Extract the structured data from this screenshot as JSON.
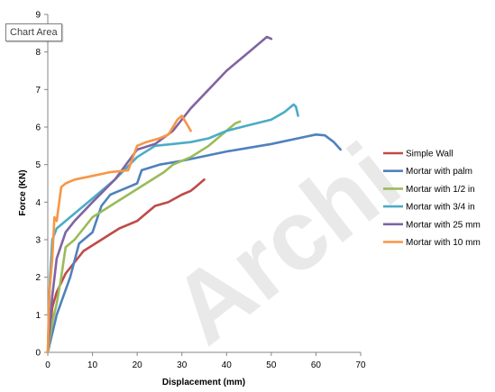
{
  "tooltip": {
    "label": "Chart Area"
  },
  "watermark": {
    "text": "Archi"
  },
  "chart_data": {
    "type": "line",
    "title": "",
    "xlabel": "Displacement  (mm)",
    "ylabel": "Force (KN)",
    "xlim": [
      0,
      70
    ],
    "ylim": [
      0,
      9
    ],
    "xticks": [
      0,
      10,
      20,
      30,
      40,
      50,
      60,
      70
    ],
    "yticks": [
      0,
      1,
      2,
      3,
      4,
      5,
      6,
      7,
      8,
      9
    ],
    "grid": false,
    "legend_position": "right",
    "series": [
      {
        "name": "Simple Wall",
        "color": "#be4b48",
        "points": [
          [
            0,
            0
          ],
          [
            1,
            1.2
          ],
          [
            2,
            1.6
          ],
          [
            4,
            2.1
          ],
          [
            6,
            2.4
          ],
          [
            8,
            2.7
          ],
          [
            12,
            3
          ],
          [
            16,
            3.3
          ],
          [
            20,
            3.5
          ],
          [
            22,
            3.7
          ],
          [
            24,
            3.9
          ],
          [
            27,
            4
          ],
          [
            30,
            4.2
          ],
          [
            32,
            4.3
          ],
          [
            33,
            4.4
          ],
          [
            35,
            4.6
          ]
        ]
      },
      {
        "name": "Mortar with palm",
        "color": "#4f81bd",
        "points": [
          [
            0,
            0
          ],
          [
            2,
            1
          ],
          [
            5,
            2
          ],
          [
            7,
            2.9
          ],
          [
            10,
            3.2
          ],
          [
            12,
            3.9
          ],
          [
            14,
            4.2
          ],
          [
            16,
            4.3
          ],
          [
            18,
            4.4
          ],
          [
            20,
            4.5
          ],
          [
            21,
            4.85
          ],
          [
            25,
            5
          ],
          [
            30,
            5.1
          ],
          [
            40,
            5.35
          ],
          [
            50,
            5.55
          ],
          [
            58,
            5.75
          ],
          [
            60,
            5.8
          ],
          [
            62,
            5.78
          ],
          [
            64,
            5.6
          ],
          [
            65.5,
            5.4
          ]
        ]
      },
      {
        "name": "Mortar with 1/2 in",
        "color": "#9bbb59",
        "points": [
          [
            0,
            0
          ],
          [
            1,
            0.8
          ],
          [
            2,
            1.3
          ],
          [
            3,
            2
          ],
          [
            4,
            2.8
          ],
          [
            6,
            3
          ],
          [
            8,
            3.3
          ],
          [
            10,
            3.6
          ],
          [
            14,
            3.9
          ],
          [
            18,
            4.2
          ],
          [
            22,
            4.5
          ],
          [
            26,
            4.8
          ],
          [
            28,
            5
          ],
          [
            32,
            5.2
          ],
          [
            36,
            5.5
          ],
          [
            39,
            5.8
          ],
          [
            42,
            6.1
          ],
          [
            43,
            6.15
          ]
        ]
      },
      {
        "name": "Mortar with 3/4 in",
        "color": "#4bacc6",
        "points": [
          [
            0,
            0
          ],
          [
            0.5,
            2
          ],
          [
            1,
            3
          ],
          [
            2,
            3.3
          ],
          [
            5,
            3.6
          ],
          [
            10,
            4.1
          ],
          [
            15,
            4.6
          ],
          [
            20,
            5.2
          ],
          [
            24,
            5.5
          ],
          [
            28,
            5.55
          ],
          [
            32,
            5.6
          ],
          [
            36,
            5.7
          ],
          [
            40,
            5.9
          ],
          [
            45,
            6.05
          ],
          [
            50,
            6.2
          ],
          [
            53,
            6.4
          ],
          [
            55,
            6.6
          ],
          [
            55.5,
            6.55
          ],
          [
            56,
            6.3
          ]
        ]
      },
      {
        "name": "Mortar with 25 mm",
        "color": "#8064a2",
        "points": [
          [
            0,
            0
          ],
          [
            1,
            1.5
          ],
          [
            2,
            2.5
          ],
          [
            4,
            3.2
          ],
          [
            6,
            3.5
          ],
          [
            10,
            4
          ],
          [
            15,
            4.6
          ],
          [
            20,
            5.4
          ],
          [
            24,
            5.55
          ],
          [
            28,
            5.9
          ],
          [
            32,
            6.5
          ],
          [
            36,
            7
          ],
          [
            40,
            7.5
          ],
          [
            45,
            8
          ],
          [
            48,
            8.3
          ],
          [
            49,
            8.4
          ],
          [
            50,
            8.35
          ]
        ]
      },
      {
        "name": "Mortar with 10 mm",
        "color": "#f79646",
        "points": [
          [
            0,
            0
          ],
          [
            0.3,
            1.5
          ],
          [
            1,
            2.5
          ],
          [
            1.5,
            3.6
          ],
          [
            2,
            3.5
          ],
          [
            3,
            4.4
          ],
          [
            4,
            4.5
          ],
          [
            6,
            4.6
          ],
          [
            10,
            4.7
          ],
          [
            14,
            4.8
          ],
          [
            18,
            4.85
          ],
          [
            20,
            5.5
          ],
          [
            22,
            5.6
          ],
          [
            25,
            5.7
          ],
          [
            27,
            5.8
          ],
          [
            29,
            6.2
          ],
          [
            30,
            6.3
          ],
          [
            31,
            6.1
          ],
          [
            32,
            5.9
          ]
        ]
      }
    ]
  }
}
